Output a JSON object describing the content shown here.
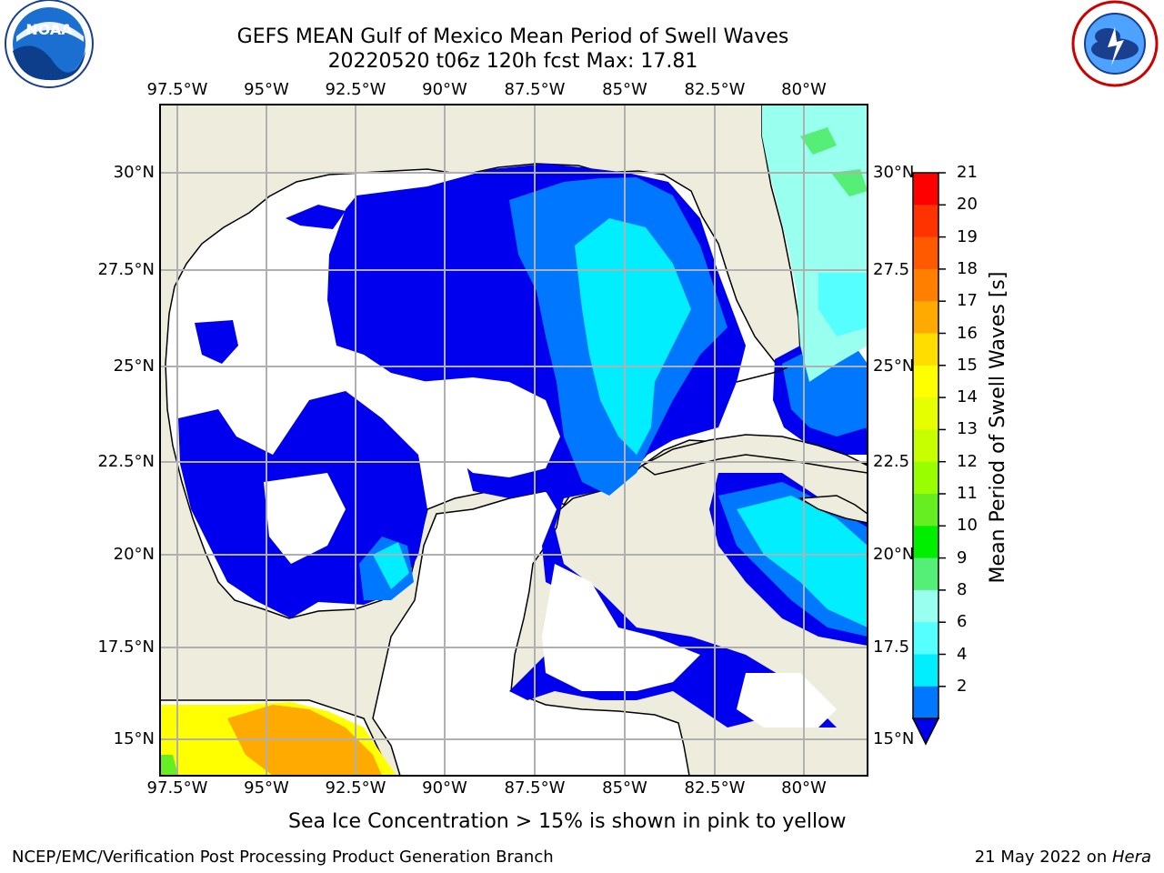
{
  "title_line1": "GEFS MEAN Gulf of Mexico Mean Period of Swell Waves",
  "title_line2": "20220520 t06z 120h fcst   Max: 17.81",
  "lon_labels": [
    "97.5°W",
    "95°W",
    "92.5°W",
    "90°W",
    "87.5°W",
    "85°W",
    "82.5°W",
    "80°W"
  ],
  "lat_labels_left": [
    "30°N",
    "27.5°N",
    "25°N",
    "22.5°N",
    "20°N",
    "17.5°N",
    "15°N"
  ],
  "lat_labels_right": [
    "30°N",
    "27.5",
    "25°N",
    "22.5",
    "20°N",
    "17.5",
    "15°N"
  ],
  "colorbar": {
    "label": "Mean Period of Swell Waves [s]",
    "ticks": [
      "21",
      "20",
      "19",
      "18",
      "17",
      "16",
      "15",
      "14",
      "13",
      "12",
      "11",
      "10",
      "9",
      "8",
      "6",
      "4",
      "2"
    ],
    "colors": [
      "#ff0000",
      "#ff3300",
      "#ff5a00",
      "#ff8000",
      "#ffaa00",
      "#ffdd00",
      "#ffff00",
      "#e6ff00",
      "#c8ff00",
      "#99ff00",
      "#66ee22",
      "#00ee00",
      "#55ee77",
      "#99ffee",
      "#55ffff",
      "#00eeff",
      "#0077ff"
    ]
  },
  "legend_note": "Sea Ice Concentration > 15% is shown in pink to yellow",
  "footer_left": "NCEP/EMC/Verification Post Processing Product Generation Branch",
  "footer_right_date": "21 May 2022 on ",
  "footer_right_host": "Hera",
  "logo_left_text": "NOAA",
  "map_colors": {
    "land": "#eeecdc",
    "ocean_low": "#0000ee",
    "grid": "#b0b0b0"
  }
}
